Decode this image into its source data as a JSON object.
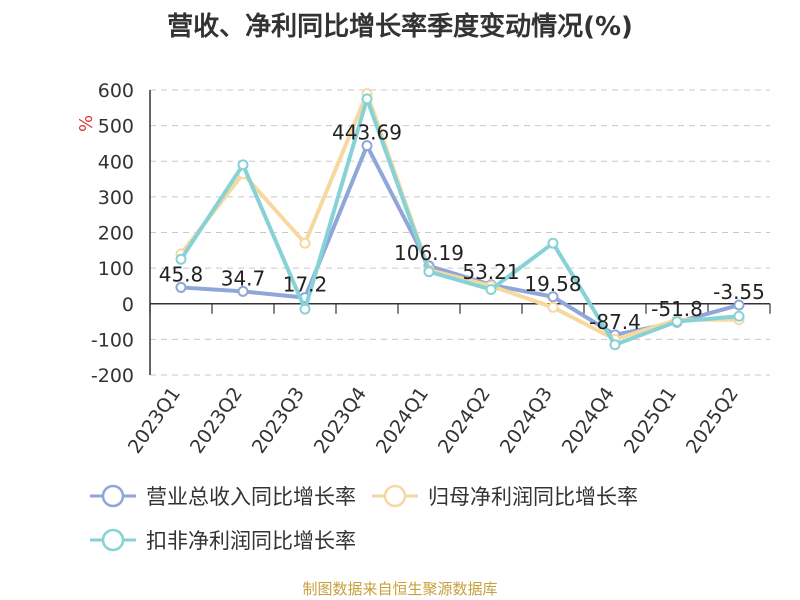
{
  "source_note": "制图数据来自恒生聚源数据库",
  "chart_data": {
    "type": "line",
    "title": "营收、净利同比增长率季度变动情况(%)",
    "ylabel": "%",
    "xlabel": "",
    "ylim": [
      -200,
      600
    ],
    "yticks": [
      600,
      500,
      400,
      300,
      200,
      100,
      0,
      -100,
      -200
    ],
    "grid": true,
    "legend_position": "bottom",
    "categories": [
      "2023Q1",
      "2023Q2",
      "2023Q3",
      "2023Q4",
      "2024Q1",
      "2024Q2",
      "2024Q3",
      "2024Q4",
      "2025Q1",
      "2025Q2"
    ],
    "series": [
      {
        "name": "营业总收入同比增长率",
        "color": "#8fa6d8",
        "values": [
          45.8,
          34.7,
          17.2,
          443.69,
          106.19,
          53.21,
          19.58,
          -87.4,
          -51.8,
          -3.55
        ],
        "labels": [
          "45.8",
          "34.7",
          "17.2",
          "443.69",
          "106.19",
          "53.21",
          "19.58",
          "-87.4",
          "-51.8",
          "-3.55"
        ]
      },
      {
        "name": "归母净利润同比增长率",
        "color": "#f7d9a0",
        "values": [
          140,
          365,
          170,
          590,
          95,
          50,
          -10,
          -100,
          -45,
          -45
        ]
      },
      {
        "name": "扣非净利润同比增长率",
        "color": "#86d2d6",
        "values": [
          125,
          390,
          -15,
          575,
          90,
          40,
          170,
          -115,
          -50,
          -35
        ]
      }
    ]
  }
}
